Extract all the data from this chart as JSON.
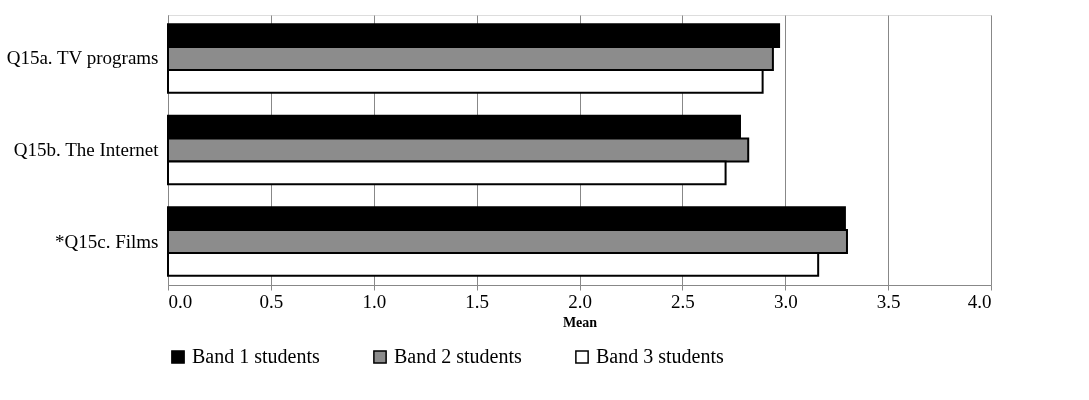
{
  "chart_data": {
    "type": "bar",
    "orientation": "horizontal",
    "xlabel": "Mean",
    "categories": [
      "Q15a. TV programs",
      "Q15b. The Internet",
      "*Q15c. Films"
    ],
    "series": [
      {
        "name": "Band 1 students",
        "color": "#000000",
        "values": [
          2.97,
          2.78,
          3.29
        ]
      },
      {
        "name": "Band 2 students",
        "color": "#8c8c8c",
        "values": [
          2.94,
          2.82,
          3.3
        ]
      },
      {
        "name": "Band 3 students",
        "color": "#ffffff",
        "values": [
          2.89,
          2.71,
          3.16
        ]
      }
    ],
    "xlim": [
      0,
      4
    ],
    "xticks": [
      {
        "value": 0,
        "label": "0.0"
      },
      {
        "value": 0.5,
        "label": "0.5"
      },
      {
        "value": 1,
        "label": "1.0"
      },
      {
        "value": 1.5,
        "label": "1.5"
      },
      {
        "value": 2,
        "label": "2.0"
      },
      {
        "value": 2.5,
        "label": "2.5"
      },
      {
        "value": 3,
        "label": "3.0"
      },
      {
        "value": 3.5,
        "label": "3.5"
      },
      {
        "value": 4,
        "label": "4.0"
      }
    ],
    "grid": "x",
    "legend": "bottom"
  }
}
